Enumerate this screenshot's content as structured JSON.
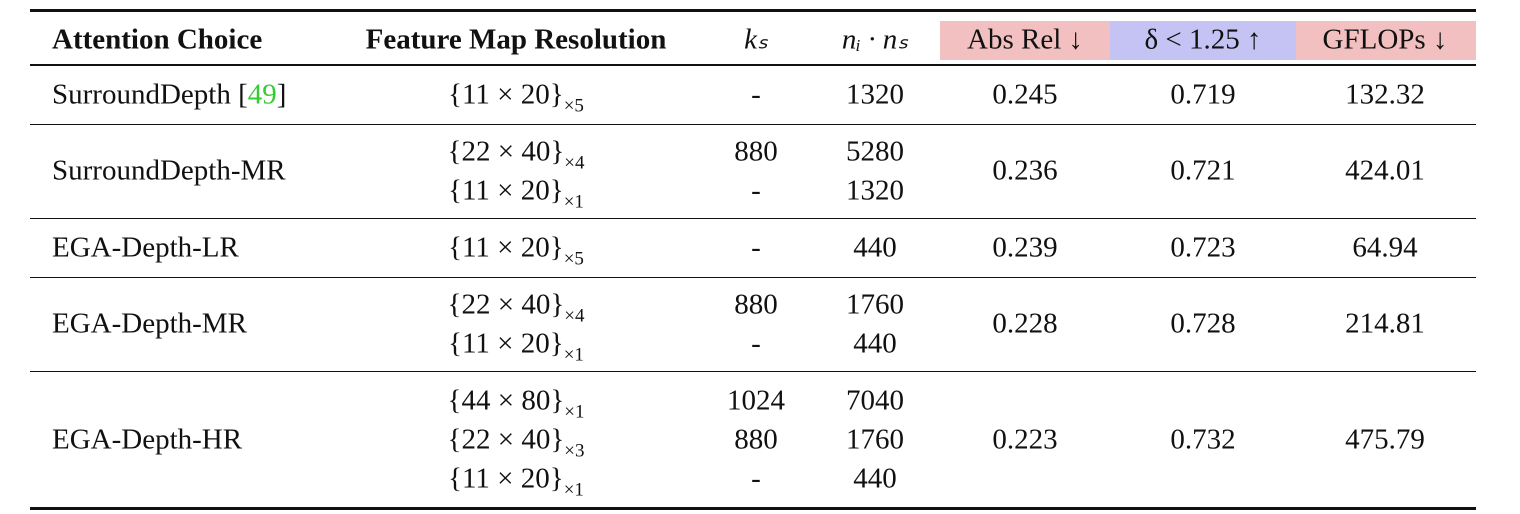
{
  "table": {
    "header": [
      "Attention Choice",
      "Feature Map Resolution",
      "kₛ",
      "nᵢ · nₛ",
      "Abs Rel ↓",
      "δ < 1.25 ↑",
      "GFLOPs ↓"
    ],
    "rows": [
      {
        "method": {
          "name": "SurroundDepth",
          "cite": {
            "open": "[",
            "number": "49",
            "close": "]"
          }
        },
        "resolution": [
          {
            "base": "{11 × 20}",
            "sub": "×5"
          }
        ],
        "ks": [
          "-"
        ],
        "ns": [
          1320
        ],
        "abs_rel": 0.245,
        "delta": 0.719,
        "gflops": 132.32
      },
      {
        "method": {
          "name": "SurroundDepth-MR"
        },
        "resolution": [
          {
            "base": "{22 × 40}",
            "sub": "×4"
          },
          {
            "base": "{11 × 20}",
            "sub": "×1"
          }
        ],
        "ks": [
          880,
          "-"
        ],
        "ns": [
          5280,
          1320
        ],
        "abs_rel": 0.236,
        "delta": 0.721,
        "gflops": 424.01
      },
      {
        "method": {
          "name": "EGA-Depth-LR"
        },
        "resolution": [
          {
            "base": "{11 × 20}",
            "sub": "×5"
          }
        ],
        "ks": [
          "-"
        ],
        "ns": [
          440
        ],
        "abs_rel": 0.239,
        "delta": 0.723,
        "gflops": 64.94
      },
      {
        "method": {
          "name": "EGA-Depth-MR"
        },
        "resolution": [
          {
            "base": "{22 × 40}",
            "sub": "×4"
          },
          {
            "base": "{11 × 20}",
            "sub": "×1"
          }
        ],
        "ks": [
          880,
          "-"
        ],
        "ns": [
          1760,
          440
        ],
        "abs_rel": 0.228,
        "delta": 0.728,
        "gflops": 214.81
      },
      {
        "method": {
          "name": "EGA-Depth-HR"
        },
        "resolution": [
          {
            "base": "{44 × 80}",
            "sub": "×1"
          },
          {
            "base": "{22 × 40}",
            "sub": "×3"
          },
          {
            "base": "{11 × 20}",
            "sub": "×1"
          }
        ],
        "ks": [
          1024,
          880,
          "-"
        ],
        "ns": [
          7040,
          1760,
          440
        ],
        "abs_rel": 0.223,
        "delta": 0.732,
        "gflops": 475.79
      }
    ]
  }
}
